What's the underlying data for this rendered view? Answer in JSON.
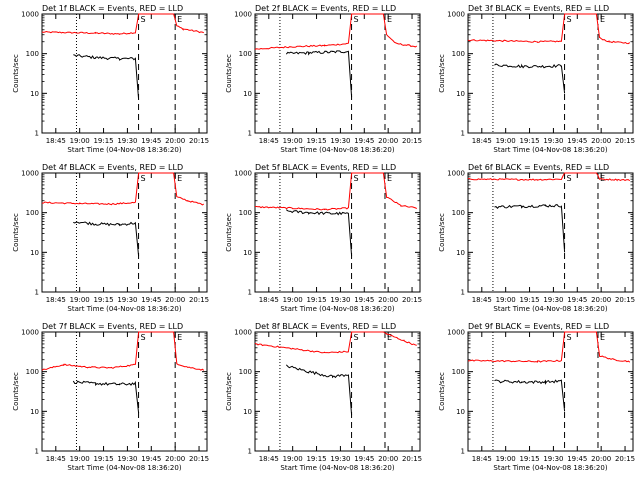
{
  "chart_data": [
    {
      "type": "line",
      "title": "Det 1f BLACK = Events, RED = LLD",
      "xlabel": "Start Time (04-Nov-08 18:36:20)",
      "ylabel": "Counts/sec",
      "xlim": [
        "18:36:20",
        "20:20:00"
      ],
      "ylim": [
        1,
        1000
      ],
      "yscale": "log",
      "xticks": [
        "18:45",
        "19:00",
        "19:15",
        "19:30",
        "19:45",
        "20:00",
        "20:15"
      ],
      "yticks": [
        "1",
        "10",
        "100",
        "1000"
      ],
      "markers": {
        "dotted": "18:58",
        "dashed": [
          "19:37",
          "20:00"
        ],
        "labels": [
          "S",
          "E"
        ]
      },
      "series": [
        {
          "color": "red",
          "points": [
            [
              "18:36:20",
              350
            ],
            [
              "19:10",
              330
            ],
            [
              "19:25",
              315
            ],
            [
              "19:35",
              340
            ],
            [
              "19:37",
              1000
            ],
            [
              "19:59",
              1000
            ],
            [
              "20:01",
              500
            ],
            [
              "20:05",
              420
            ],
            [
              "20:18",
              340
            ]
          ]
        },
        {
          "color": "black",
          "points": [
            [
              "18:56",
              90
            ],
            [
              "19:10",
              80
            ],
            [
              "19:25",
              75
            ],
            [
              "19:35",
              75
            ],
            [
              "19:37",
              7
            ]
          ]
        }
      ]
    },
    {
      "type": "line",
      "title": "Det 2f BLACK = Events, RED = LLD",
      "xlabel": "Start Time (04-Nov-08 18:36:20)",
      "ylabel": "Counts/sec",
      "xlim": [
        "18:36:20",
        "20:20:00"
      ],
      "ylim": [
        1,
        1000
      ],
      "yscale": "log",
      "xticks": [
        "18:45",
        "19:00",
        "19:15",
        "19:30",
        "19:45",
        "20:00",
        "20:15"
      ],
      "yticks": [
        "1",
        "10",
        "100",
        "1000"
      ],
      "markers": {
        "dotted": "18:52",
        "dashed": [
          "19:37",
          "19:58"
        ],
        "labels": [
          "S",
          "E"
        ]
      },
      "series": [
        {
          "color": "red",
          "points": [
            [
              "18:36:20",
              130
            ],
            [
              "19:00",
              150
            ],
            [
              "19:20",
              160
            ],
            [
              "19:35",
              180
            ],
            [
              "19:37",
              1000
            ],
            [
              "19:57",
              1000
            ],
            [
              "19:59",
              300
            ],
            [
              "20:05",
              180
            ],
            [
              "20:18",
              150
            ]
          ]
        },
        {
          "color": "black",
          "points": [
            [
              "18:56",
              100
            ],
            [
              "19:10",
              105
            ],
            [
              "19:25",
              110
            ],
            [
              "19:35",
              115
            ],
            [
              "19:37",
              8
            ]
          ]
        }
      ]
    },
    {
      "type": "line",
      "title": "Det 3f BLACK = Events, RED = LLD",
      "xlabel": "Start Time (04-Nov-08 18:36:20)",
      "ylabel": "Counts/sec",
      "xlim": [
        "18:36:20",
        "20:20:00"
      ],
      "ylim": [
        1,
        1000
      ],
      "yscale": "log",
      "xticks": [
        "18:45",
        "19:00",
        "19:15",
        "19:30",
        "19:45",
        "20:00",
        "20:15"
      ],
      "yticks": [
        "1",
        "10",
        "100",
        "1000"
      ],
      "markers": {
        "dotted": "18:52",
        "dashed": [
          "19:37",
          "19:58"
        ],
        "labels": [
          "S",
          "E"
        ]
      },
      "series": [
        {
          "color": "red",
          "points": [
            [
              "18:36:20",
              220
            ],
            [
              "19:00",
              210
            ],
            [
              "19:20",
              200
            ],
            [
              "19:35",
              205
            ],
            [
              "19:37",
              1000
            ],
            [
              "19:57",
              1000
            ],
            [
              "19:59",
              250
            ],
            [
              "20:05",
              200
            ],
            [
              "20:18",
              185
            ]
          ]
        },
        {
          "color": "black",
          "points": [
            [
              "18:53",
              52
            ],
            [
              "19:10",
              48
            ],
            [
              "19:25",
              48
            ],
            [
              "19:35",
              50
            ],
            [
              "19:37",
              10
            ]
          ]
        }
      ]
    },
    {
      "type": "line",
      "title": "Det 4f BLACK = Events, RED = LLD",
      "xlabel": "Start Time (04-Nov-08 18:36:20)",
      "ylabel": "Counts/sec",
      "xlim": [
        "18:36:20",
        "20:20:00"
      ],
      "ylim": [
        1,
        1000
      ],
      "yscale": "log",
      "xticks": [
        "18:45",
        "19:00",
        "19:15",
        "19:30",
        "19:45",
        "20:00",
        "20:15"
      ],
      "yticks": [
        "1",
        "10",
        "100",
        "1000"
      ],
      "markers": {
        "dotted": "18:58",
        "dashed": [
          "19:37",
          "20:00"
        ],
        "labels": [
          "S",
          "E"
        ]
      },
      "series": [
        {
          "color": "red",
          "points": [
            [
              "18:36:20",
              180
            ],
            [
              "19:00",
              170
            ],
            [
              "19:20",
              165
            ],
            [
              "19:35",
              180
            ],
            [
              "19:37",
              1000
            ],
            [
              "19:59",
              1000
            ],
            [
              "20:01",
              250
            ],
            [
              "20:08",
              200
            ],
            [
              "20:18",
              160
            ]
          ]
        },
        {
          "color": "black",
          "points": [
            [
              "18:56",
              60
            ],
            [
              "19:10",
              52
            ],
            [
              "19:25",
              50
            ],
            [
              "19:35",
              55
            ],
            [
              "19:37",
              8
            ]
          ]
        }
      ]
    },
    {
      "type": "line",
      "title": "Det 5f BLACK = Events, RED = LLD",
      "xlabel": "Start Time (04-Nov-08 18:36:20)",
      "ylabel": "Counts/sec",
      "xlim": [
        "18:36:20",
        "20:20:00"
      ],
      "ylim": [
        1,
        1000
      ],
      "yscale": "log",
      "xticks": [
        "18:45",
        "19:00",
        "19:15",
        "19:30",
        "19:45",
        "20:00",
        "20:15"
      ],
      "yticks": [
        "1",
        "10",
        "100",
        "1000"
      ],
      "markers": {
        "dotted": "18:52",
        "dashed": [
          "19:37",
          "19:58"
        ],
        "labels": [
          "S",
          "E"
        ]
      },
      "series": [
        {
          "color": "red",
          "points": [
            [
              "18:36:20",
              140
            ],
            [
              "19:00",
              130
            ],
            [
              "19:20",
              120
            ],
            [
              "19:35",
              130
            ],
            [
              "19:37",
              1000
            ],
            [
              "19:57",
              1000
            ],
            [
              "19:59",
              250
            ],
            [
              "20:08",
              150
            ],
            [
              "20:18",
              130
            ]
          ]
        },
        {
          "color": "black",
          "points": [
            [
              "18:56",
              110
            ],
            [
              "19:10",
              100
            ],
            [
              "19:25",
              95
            ],
            [
              "19:35",
              95
            ],
            [
              "19:37",
              8
            ]
          ]
        }
      ]
    },
    {
      "type": "line",
      "title": "Det 6f BLACK = Events, RED = LLD",
      "xlabel": "Start Time (04-Nov-08 18:36:20)",
      "ylabel": "Counts/sec",
      "xlim": [
        "18:36:20",
        "20:20:00"
      ],
      "ylim": [
        1,
        1000
      ],
      "yscale": "log",
      "xticks": [
        "18:45",
        "19:00",
        "19:15",
        "19:30",
        "19:45",
        "20:00",
        "20:15"
      ],
      "yticks": [
        "1",
        "10",
        "100",
        "1000"
      ],
      "markers": {
        "dotted": "18:52",
        "dashed": [
          "19:37",
          "19:58"
        ],
        "labels": [
          "S",
          "E"
        ]
      },
      "series": [
        {
          "color": "red",
          "points": [
            [
              "18:36:20",
              700
            ],
            [
              "19:00",
              690
            ],
            [
              "19:20",
              680
            ],
            [
              "19:35",
              700
            ],
            [
              "19:37",
              1000
            ],
            [
              "19:57",
              1000
            ],
            [
              "19:59",
              700
            ],
            [
              "20:10",
              680
            ],
            [
              "20:18",
              660
            ]
          ]
        },
        {
          "color": "black",
          "points": [
            [
              "18:53",
              140
            ],
            [
              "19:10",
              145
            ],
            [
              "19:25",
              150
            ],
            [
              "19:35",
              150
            ],
            [
              "19:37",
              10
            ]
          ]
        }
      ]
    },
    {
      "type": "line",
      "title": "Det 7f BLACK = Events, RED = LLD",
      "xlabel": "Start Time (04-Nov-08 18:36:20)",
      "ylabel": "Counts/sec",
      "xlim": [
        "18:36:20",
        "20:20:00"
      ],
      "ylim": [
        1,
        1000
      ],
      "yscale": "log",
      "xticks": [
        "18:45",
        "19:00",
        "19:15",
        "19:30",
        "19:45",
        "20:00",
        "20:15"
      ],
      "yticks": [
        "1",
        "10",
        "100",
        "1000"
      ],
      "markers": {
        "dotted": "18:58",
        "dashed": [
          "19:37",
          "20:00"
        ],
        "labels": [
          "S",
          "E"
        ]
      },
      "series": [
        {
          "color": "red",
          "points": [
            [
              "18:36:20",
              110
            ],
            [
              "18:50",
              150
            ],
            [
              "19:05",
              130
            ],
            [
              "19:20",
              125
            ],
            [
              "19:35",
              150
            ],
            [
              "19:37",
              1000
            ],
            [
              "19:59",
              1000
            ],
            [
              "20:01",
              160
            ],
            [
              "20:08",
              130
            ],
            [
              "20:18",
              110
            ]
          ]
        },
        {
          "color": "black",
          "points": [
            [
              "18:56",
              55
            ],
            [
              "19:10",
              50
            ],
            [
              "19:25",
              48
            ],
            [
              "19:35",
              50
            ],
            [
              "19:37",
              9
            ]
          ]
        }
      ]
    },
    {
      "type": "line",
      "title": "Det 8f BLACK = Events, RED = LLD",
      "xlabel": "Start Time (04-Nov-08 18:36:20)",
      "ylabel": "Counts/sec",
      "xlim": [
        "18:36:20",
        "20:20:00"
      ],
      "ylim": [
        1,
        1000
      ],
      "yscale": "log",
      "xticks": [
        "18:45",
        "19:00",
        "19:15",
        "19:30",
        "19:45",
        "20:00",
        "20:15"
      ],
      "yticks": [
        "1",
        "10",
        "100",
        "1000"
      ],
      "markers": {
        "dotted": "18:52",
        "dashed": [
          "19:37",
          "19:58"
        ],
        "labels": [
          "S",
          "E"
        ]
      },
      "series": [
        {
          "color": "red",
          "points": [
            [
              "18:36:20",
              500
            ],
            [
              "19:00",
              380
            ],
            [
              "19:20",
              300
            ],
            [
              "19:35",
              320
            ],
            [
              "19:37",
              1000
            ],
            [
              "19:57",
              1000
            ],
            [
              "19:59",
              900
            ],
            [
              "20:10",
              600
            ],
            [
              "20:18",
              450
            ]
          ]
        },
        {
          "color": "black",
          "points": [
            [
              "18:56",
              140
            ],
            [
              "19:10",
              100
            ],
            [
              "19:25",
              75
            ],
            [
              "19:35",
              85
            ],
            [
              "19:37",
              8
            ]
          ]
        }
      ]
    },
    {
      "type": "line",
      "title": "Det 9f BLACK = Events, RED = LLD",
      "xlabel": "Start Time (04-Nov-08 18:36:20)",
      "ylabel": "Counts/sec",
      "xlim": [
        "18:36:20",
        "20:20:00"
      ],
      "ylim": [
        1,
        1000
      ],
      "yscale": "log",
      "xticks": [
        "18:45",
        "19:00",
        "19:15",
        "19:30",
        "19:45",
        "20:00",
        "20:15"
      ],
      "yticks": [
        "1",
        "10",
        "100",
        "1000"
      ],
      "markers": {
        "dotted": "18:52",
        "dashed": [
          "19:37",
          "19:58"
        ],
        "labels": [
          "S",
          "E"
        ]
      },
      "series": [
        {
          "color": "red",
          "points": [
            [
              "18:36:20",
              190
            ],
            [
              "19:00",
              185
            ],
            [
              "19:20",
              180
            ],
            [
              "19:35",
              190
            ],
            [
              "19:37",
              1000
            ],
            [
              "19:57",
              1000
            ],
            [
              "19:59",
              250
            ],
            [
              "20:08",
              200
            ],
            [
              "20:18",
              180
            ]
          ]
        },
        {
          "color": "black",
          "points": [
            [
              "18:53",
              58
            ],
            [
              "19:10",
              55
            ],
            [
              "19:25",
              55
            ],
            [
              "19:35",
              58
            ],
            [
              "19:37",
              10
            ]
          ]
        }
      ]
    }
  ]
}
